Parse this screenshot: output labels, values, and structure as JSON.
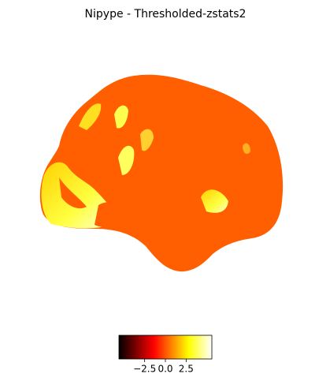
{
  "chart_data": {
    "type": "surface",
    "title": "Nipype - Thresholded-zstats2",
    "colormap": "hot",
    "clim": [
      -5.6,
      5.6
    ],
    "cticks": [
      {
        "value": -2.5,
        "label": "−2.5"
      },
      {
        "value": 0,
        "label": "0.0"
      },
      2.5
    ]
  }
}
